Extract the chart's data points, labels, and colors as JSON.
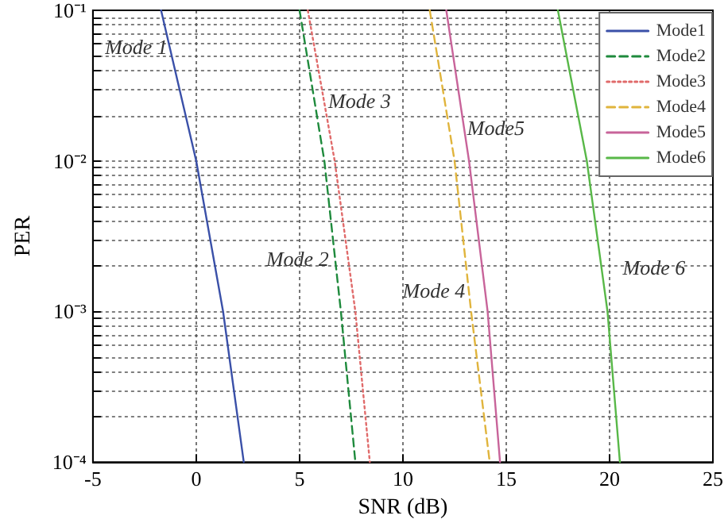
{
  "chart_data": {
    "type": "line",
    "xlabel": "SNR (dB)",
    "ylabel": "PER",
    "log": "y",
    "xlim": [
      -5,
      25
    ],
    "xticks": [
      -5,
      0,
      5,
      10,
      15,
      20,
      25
    ],
    "ylim": [
      0.0001,
      0.1
    ],
    "yticks": [
      {
        "value": 0.0001,
        "label": "10⁻⁴"
      },
      {
        "value": 0.0002,
        "label": null
      },
      {
        "value": 0.0003,
        "label": null
      },
      {
        "value": 0.0004,
        "label": null
      },
      {
        "value": 0.0005,
        "label": null
      },
      {
        "value": 0.0006,
        "label": null
      },
      {
        "value": 0.0007,
        "label": null
      },
      {
        "value": 0.0008,
        "label": null
      },
      {
        "value": 0.0009,
        "label": null
      },
      {
        "value": 0.001,
        "label": "10⁻³"
      },
      {
        "value": 0.002,
        "label": null
      },
      {
        "value": 0.003,
        "label": null
      },
      {
        "value": 0.004,
        "label": null
      },
      {
        "value": 0.005,
        "label": null
      },
      {
        "value": 0.006,
        "label": null
      },
      {
        "value": 0.007,
        "label": null
      },
      {
        "value": 0.008,
        "label": null
      },
      {
        "value": 0.009,
        "label": null
      },
      {
        "value": 0.01,
        "label": "10⁻²"
      },
      {
        "value": 0.02,
        "label": null
      },
      {
        "value": 0.03,
        "label": null
      },
      {
        "value": 0.04,
        "label": null
      },
      {
        "value": 0.05,
        "label": null
      },
      {
        "value": 0.06,
        "label": null
      },
      {
        "value": 0.07,
        "label": null
      },
      {
        "value": 0.08,
        "label": null
      },
      {
        "value": 0.09,
        "label": null
      },
      {
        "value": 0.1,
        "label": "10⁻¹"
      }
    ],
    "grid": true,
    "legend": "top right",
    "marker": "none",
    "series": [
      {
        "name": "Mode1",
        "color": "#3a50a8",
        "line_style": "solid",
        "x": [
          -1.7,
          0.0,
          1.3,
          2.3
        ],
        "values": [
          0.1,
          0.01,
          0.001,
          0.0001
        ]
      },
      {
        "name": "Mode2",
        "color": "#1e8a3c",
        "line_style": "dashed",
        "x": [
          5.0,
          6.2,
          7.0,
          7.7
        ],
        "values": [
          0.1,
          0.01,
          0.001,
          0.0001
        ]
      },
      {
        "name": "Mode3",
        "color": "#e06a6a",
        "line_style": "dotted",
        "x": [
          5.4,
          6.7,
          7.7,
          8.4
        ],
        "values": [
          0.1,
          0.01,
          0.001,
          0.0001
        ]
      },
      {
        "name": "Mode4",
        "color": "#e0b43c",
        "line_style": "dashed",
        "x": [
          11.3,
          12.5,
          13.3,
          14.2
        ],
        "values": [
          0.1,
          0.01,
          0.001,
          0.0001
        ]
      },
      {
        "name": "Mode5",
        "color": "#c8649a",
        "line_style": "solid",
        "x": [
          12.1,
          13.2,
          14.1,
          14.7
        ],
        "values": [
          0.1,
          0.01,
          0.001,
          0.0001
        ]
      },
      {
        "name": "Mode6",
        "color": "#58b848",
        "line_style": "solid",
        "x": [
          17.5,
          18.9,
          19.9,
          20.5
        ],
        "values": [
          0.1,
          0.01,
          0.001,
          0.0001
        ]
      }
    ],
    "annotations": [
      "Mode 1",
      "Mode 3",
      "Mode5",
      "Mode 2",
      "Mode 4",
      "Mode 6"
    ]
  }
}
